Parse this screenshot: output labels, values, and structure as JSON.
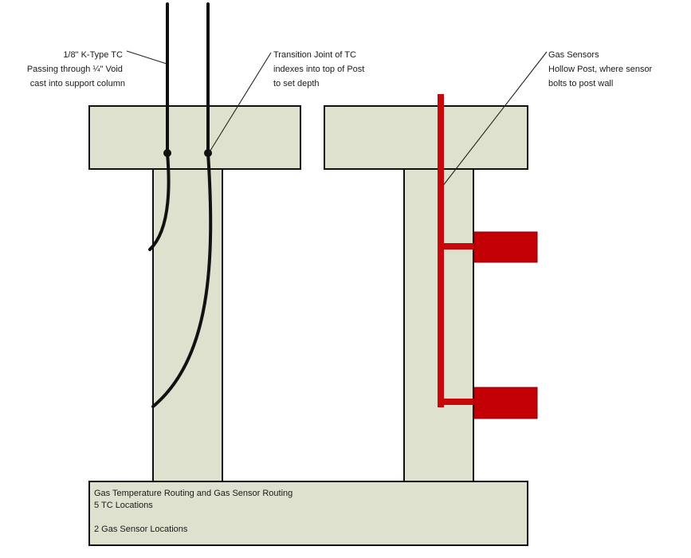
{
  "labels": {
    "tc": {
      "line1": "1/8\" K-Type TC",
      "line2": "Passing through ¼\" Void",
      "line3": "cast into support column"
    },
    "transition": {
      "line1": "Transition Joint of TC",
      "line2": "indexes into top of Post",
      "line3": "to set depth"
    },
    "gas_sensors": {
      "line1": "Gas Sensors",
      "line2": "Hollow Post, where sensor",
      "line3": "bolts to post wall"
    }
  },
  "base": {
    "line1": "Gas Temperature Routing and Gas Sensor Routing",
    "line2": "5 TC Locations",
    "line3": "2 Gas Sensor Locations"
  },
  "colors": {
    "concrete": "#dfe1cf",
    "tc_wire": "#111111",
    "gas_line": "#c8090c",
    "sensor": "#c20006"
  }
}
